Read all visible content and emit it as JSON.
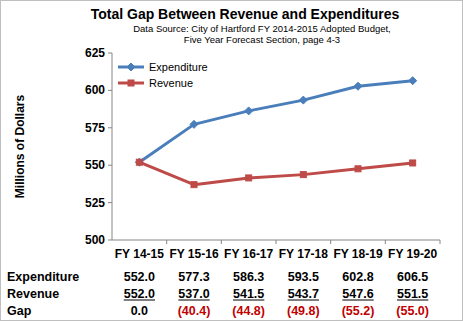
{
  "chart_data": {
    "type": "line",
    "title": "Total Gap Between Revenue and Expenditures",
    "subtitle": [
      "Data Source: City of Hartford FY 2014-2015 Adopted Budget,",
      "Five Year Forecast Section, page 4-3"
    ],
    "y_label": "Millions of Dollars",
    "categories": [
      "FY 14-15",
      "FY 15-16",
      "FY 16-17",
      "FY 17-18",
      "FY 18-19",
      "FY 19-20"
    ],
    "series": [
      {
        "name": "Expenditure",
        "color": "#4a7ebb",
        "marker": "diamond",
        "values": [
          552.0,
          577.3,
          586.3,
          593.5,
          602.8,
          606.5
        ],
        "value_labels": [
          "552.0",
          "577.3",
          "586.3",
          "593.5",
          "602.8",
          "606.5"
        ]
      },
      {
        "name": "Revenue",
        "color": "#be4b48",
        "marker": "square",
        "values": [
          552.0,
          537.0,
          541.5,
          543.7,
          547.6,
          551.5
        ],
        "value_labels": [
          "552.0",
          "537.0",
          "541.5",
          "543.7",
          "547.6",
          "551.5"
        ]
      }
    ],
    "ylim": [
      500,
      625
    ],
    "yticks": [
      500,
      525,
      550,
      575,
      600,
      625
    ],
    "grid": false,
    "legend": "upper left"
  },
  "table": {
    "rows": [
      {
        "name": "Gap",
        "values": [
          0.0,
          -40.4,
          -44.8,
          -49.8,
          -55.2,
          -55.0
        ],
        "value_labels": [
          "0.0",
          "(40.4)",
          "(44.8)",
          "(49.8)",
          "(55.2)",
          "(55.0)"
        ],
        "colors": [
          "#000000",
          "#c00000",
          "#c00000",
          "#c00000",
          "#c00000",
          "#c00000"
        ]
      }
    ]
  }
}
